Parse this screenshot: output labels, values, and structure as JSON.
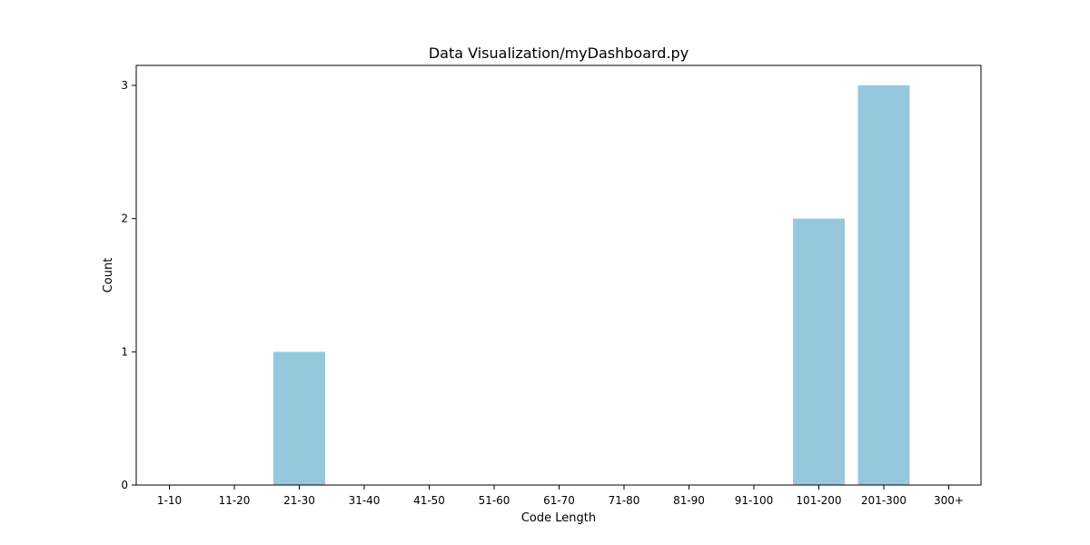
{
  "chart_data": {
    "type": "bar",
    "title": "Data Visualization/myDashboard.py",
    "xlabel": "Code Length",
    "ylabel": "Count",
    "categories": [
      "1-10",
      "11-20",
      "21-30",
      "31-40",
      "41-50",
      "51-60",
      "61-70",
      "71-80",
      "81-90",
      "91-100",
      "101-200",
      "201-300",
      "300+"
    ],
    "values": [
      0,
      0,
      1,
      0,
      0,
      0,
      0,
      0,
      0,
      0,
      2,
      3,
      0
    ],
    "ylim": [
      0,
      3.15
    ],
    "yticks": [
      0,
      1,
      2,
      3
    ],
    "bar_color": "#96c8dc",
    "grid": false,
    "legend": "none"
  }
}
